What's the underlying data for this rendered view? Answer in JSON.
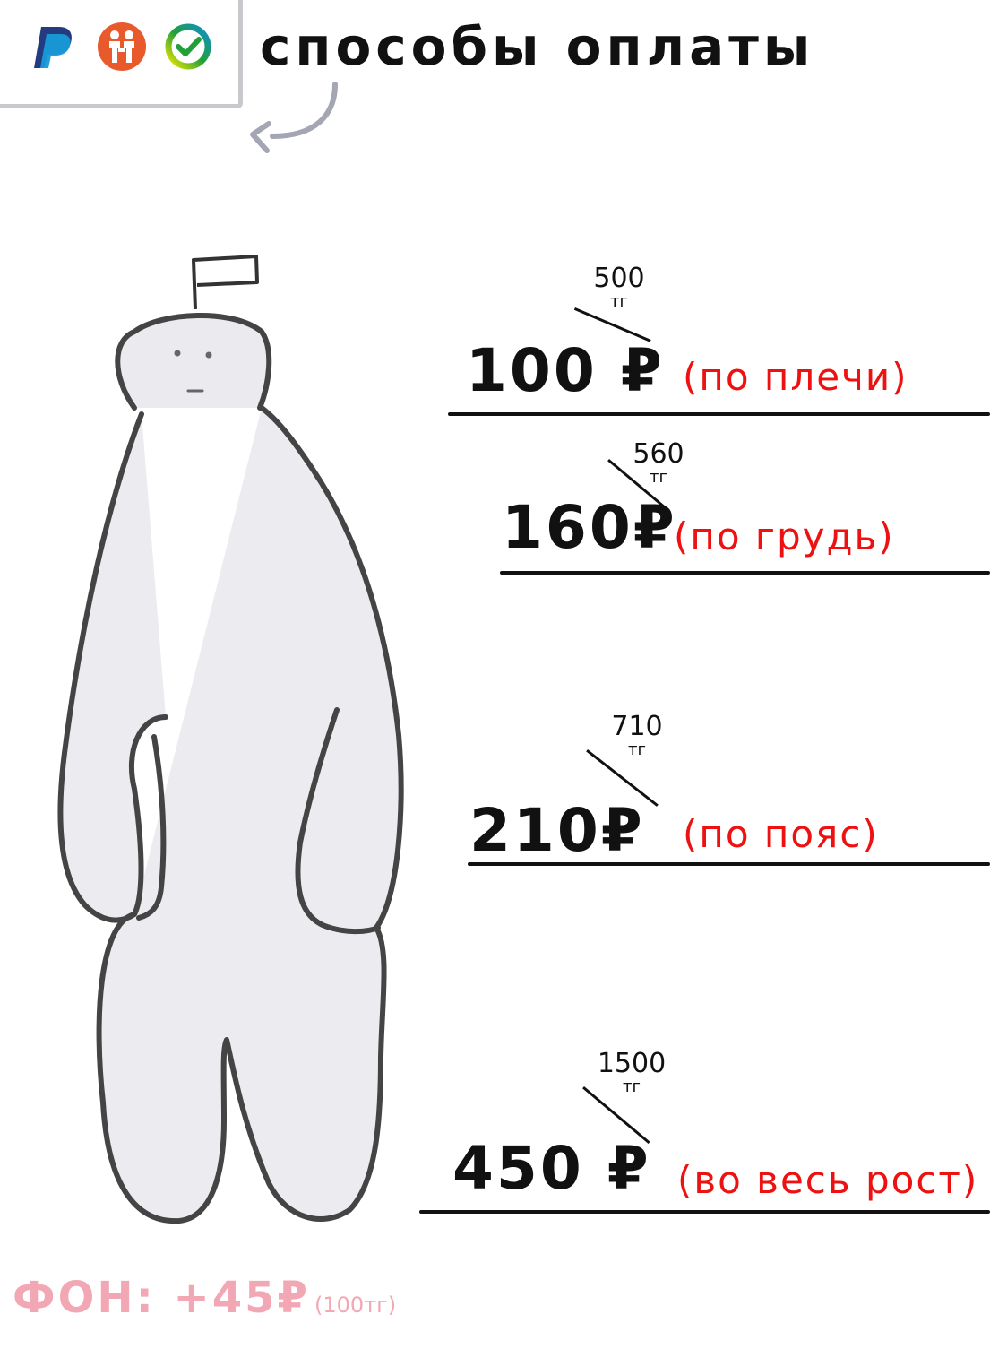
{
  "payment": {
    "title": "способы оплаты",
    "methods": [
      {
        "name": "PayPal",
        "icon": "paypal-icon",
        "color": "#253b80"
      },
      {
        "name": "donation",
        "icon": "donation-people-icon",
        "color": "#e85a2c"
      },
      {
        "name": "sber",
        "icon": "sber-check-icon",
        "color": "#21a038"
      }
    ]
  },
  "tiers": [
    {
      "old_price": "500",
      "old_currency": "тг",
      "price": "100 ₽",
      "desc": "(по плечи)"
    },
    {
      "old_price": "560",
      "old_currency": "тг",
      "price": "160₽",
      "desc": "(по грудь)"
    },
    {
      "old_price": "710",
      "old_currency": "тг",
      "price": "210₽",
      "desc": "(по пояс)"
    },
    {
      "old_price": "1500",
      "old_currency": "тг",
      "price": "450 ₽",
      "desc": "(во весь рост)"
    }
  ],
  "background_note": {
    "main": "ФОН: +45₽",
    "sub": "(100тг)"
  },
  "colors": {
    "accent_red": "#ee1111",
    "note_pink": "#f2a7b4",
    "figure_fill": "#e8e8ec",
    "outline": "#444444"
  }
}
